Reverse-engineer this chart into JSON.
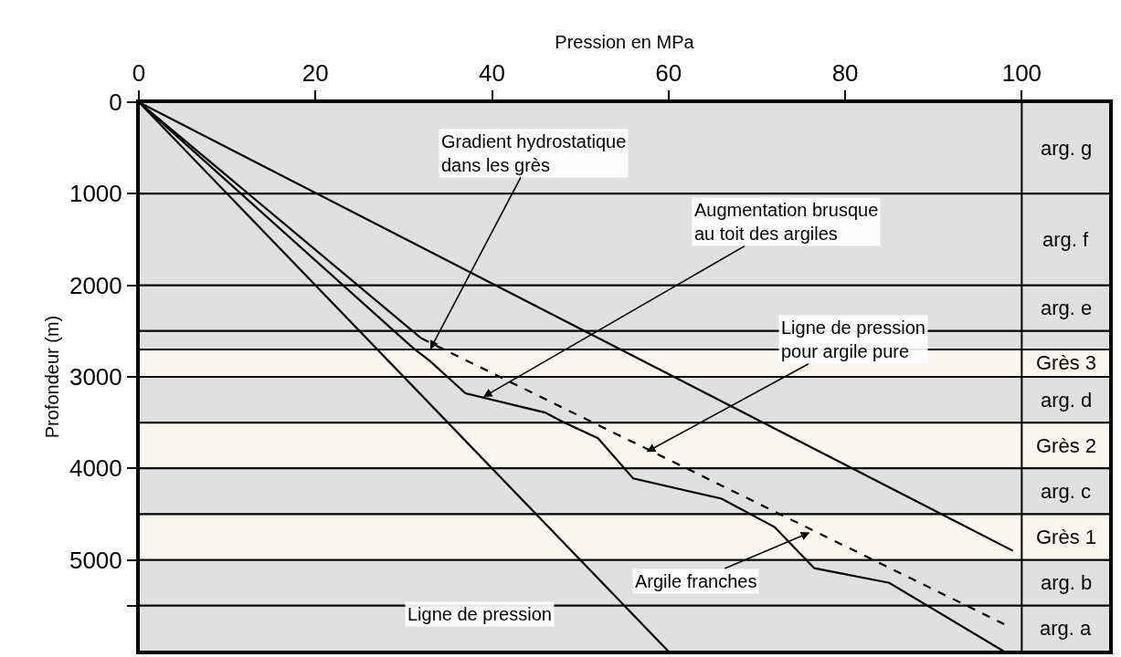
{
  "chart_data": {
    "type": "line",
    "xlabel": "Pression en MPa",
    "ylabel": "Profondeur (m)",
    "xlim": [
      0,
      110
    ],
    "xticks": [
      0,
      20,
      40,
      60,
      80,
      100
    ],
    "ylim": [
      6000,
      0
    ],
    "yticks": [
      0,
      1000,
      2000,
      3000,
      4000,
      5000,
      {
        "value": 5500,
        "label": null
      }
    ],
    "grid": false,
    "marker": "none",
    "series": [
      {
        "color": "#000000",
        "x": [
          0,
          60
        ],
        "values": [
          0,
          6000
        ]
      },
      {
        "color": "#000000",
        "x": [
          0,
          99
        ],
        "values": [
          0,
          4900
        ]
      },
      {
        "color": "#000000",
        "x": [
          0,
          31,
          33,
          37,
          46,
          48,
          52,
          56,
          66,
          72,
          76.5,
          85,
          98
        ],
        "values": [
          0,
          2680,
          2830,
          3180,
          3390,
          3490,
          3670,
          4110,
          4330,
          4640,
          5090,
          5250,
          6000
        ]
      },
      {
        "color": "#000000",
        "x": [
          0,
          32
        ],
        "values": [
          0,
          2580
        ]
      },
      {
        "color": "#000000",
        "line_style": "dashed",
        "x": [
          32,
          98
        ],
        "values": [
          2580,
          5700
        ]
      }
    ],
    "ref_lines": [
      {
        "axis": "x",
        "value": 100,
        "color": "#000000"
      }
    ],
    "bands": [
      {
        "axis": "y",
        "from": 0,
        "to": 1000,
        "label": "arg. g",
        "color": "#e0e0e0"
      },
      {
        "axis": "y",
        "from": 1000,
        "to": 2000,
        "label": "arg. f",
        "color": "#e0e0e0"
      },
      {
        "axis": "y",
        "from": 2000,
        "to": 2500,
        "label": "arg. e",
        "color": "#e0e0e0"
      },
      {
        "axis": "y",
        "from": 2500,
        "to": 2700,
        "label": null,
        "color": "#e0e0e0"
      },
      {
        "axis": "y",
        "from": 2700,
        "to": 3000,
        "label": "Grès 3",
        "color": "#f8f6ee"
      },
      {
        "axis": "y",
        "from": 3000,
        "to": 3500,
        "label": "arg. d",
        "color": "#e0e0e0"
      },
      {
        "axis": "y",
        "from": 3500,
        "to": 4000,
        "label": "Grès 2",
        "color": "#f8f6ee"
      },
      {
        "axis": "y",
        "from": 4000,
        "to": 4500,
        "label": "arg. c",
        "color": "#e0e0e0"
      },
      {
        "axis": "y",
        "from": 4500,
        "to": 5000,
        "label": "Grès 1",
        "color": "#f8f6ee"
      },
      {
        "axis": "y",
        "from": 5000,
        "to": 5500,
        "label": "arg. b",
        "color": "#e0e0e0"
      },
      {
        "axis": "y",
        "from": 5500,
        "to": 6000,
        "label": "arg. a",
        "color": "#e0e0e0"
      }
    ],
    "annotations": [
      {
        "text": "Gradient hydrostatique\ndans les grès",
        "x": 33,
        "y": 2700
      },
      {
        "text": "Augmentation brusque\nau toit des argiles",
        "x": 39,
        "y": 3220
      },
      {
        "text": "Ligne de pression\npour argile pure",
        "x": 57.5,
        "y": 3820
      },
      {
        "text": "Argile franches",
        "x": 76,
        "y": 4700
      },
      "Ligne de pression"
    ]
  }
}
